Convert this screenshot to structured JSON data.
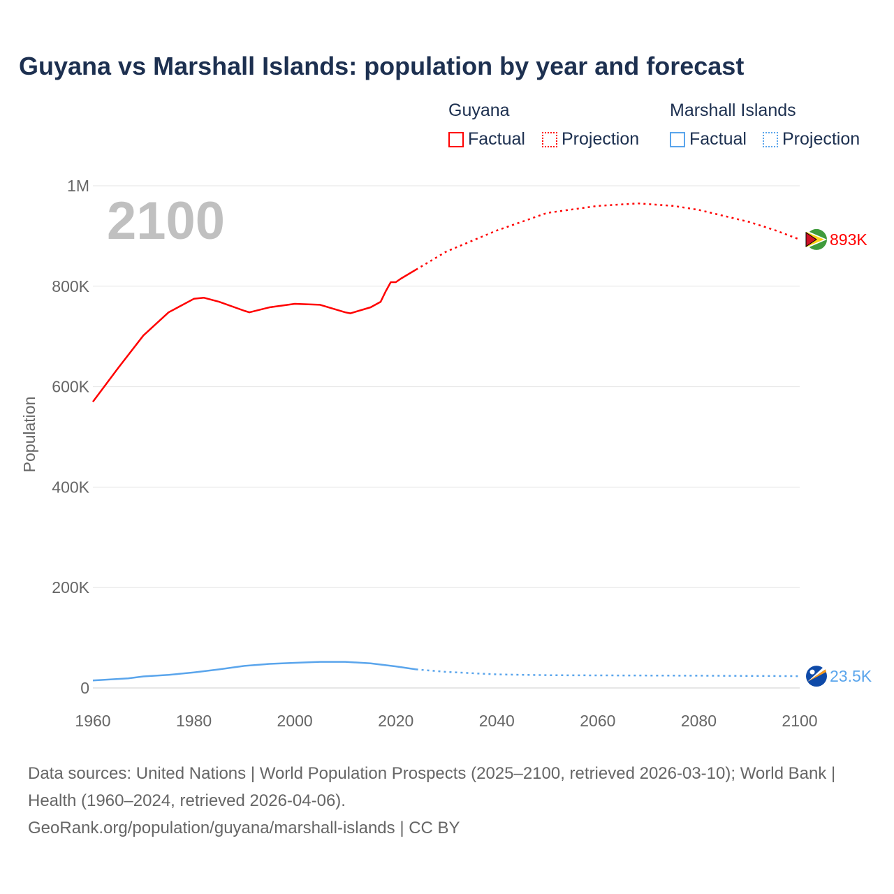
{
  "title": "Guyana vs Marshall Islands: population by year and forecast",
  "legend": {
    "groups": [
      {
        "name": "Guyana",
        "color": "#ff0000",
        "items": [
          "Factual",
          "Projection"
        ]
      },
      {
        "name": "Marshall Islands",
        "color": "#5aa5ec",
        "items": [
          "Factual",
          "Projection"
        ]
      }
    ]
  },
  "footer": {
    "line1": "Data sources: United Nations | World Population Prospects (2025–2100, retrieved 2026-03-10); World Bank | Health (1960–2024, retrieved 2026-04-06).",
    "line2": "GeoRank.org/population/guyana/marshall-islands | CC BY"
  },
  "chart_data": {
    "type": "line",
    "title": "Guyana vs Marshall Islands: population by year and forecast",
    "year_label": "2100",
    "xlabel": "",
    "ylabel": "Population",
    "xlim": [
      1960,
      2100
    ],
    "ylim": [
      0,
      1000000
    ],
    "xticks": [
      1960,
      1980,
      2000,
      2020,
      2040,
      2060,
      2080,
      2100
    ],
    "yticks": [
      {
        "v": 0,
        "l": "0"
      },
      {
        "v": 200000,
        "l": "200K"
      },
      {
        "v": 400000,
        "l": "400K"
      },
      {
        "v": 600000,
        "l": "600K"
      },
      {
        "v": 800000,
        "l": "800K"
      },
      {
        "v": 1000000,
        "l": "1M"
      }
    ],
    "grid": true,
    "series": [
      {
        "name": "Guyana",
        "color": "#ff0000",
        "end_label": "893K",
        "factual": [
          [
            1960,
            570000
          ],
          [
            1965,
            637000
          ],
          [
            1970,
            702000
          ],
          [
            1975,
            748000
          ],
          [
            1980,
            775000
          ],
          [
            1982,
            777000
          ],
          [
            1985,
            769000
          ],
          [
            1990,
            751000
          ],
          [
            1991,
            748000
          ],
          [
            1995,
            758000
          ],
          [
            2000,
            765000
          ],
          [
            2005,
            763000
          ],
          [
            2010,
            748000
          ],
          [
            2011,
            746000
          ],
          [
            2015,
            758000
          ],
          [
            2017,
            769000
          ],
          [
            2018,
            790000
          ],
          [
            2019,
            808000
          ],
          [
            2020,
            808000
          ],
          [
            2021,
            815000
          ],
          [
            2024,
            833000
          ]
        ],
        "projection": [
          [
            2024,
            833000
          ],
          [
            2030,
            869000
          ],
          [
            2040,
            911000
          ],
          [
            2050,
            946000
          ],
          [
            2060,
            960000
          ],
          [
            2068,
            965000
          ],
          [
            2075,
            960000
          ],
          [
            2080,
            952000
          ],
          [
            2090,
            928000
          ],
          [
            2095,
            912000
          ],
          [
            2100,
            893000
          ]
        ]
      },
      {
        "name": "Marshall Islands",
        "color": "#5aa5ec",
        "end_label": "23.5K",
        "factual": [
          [
            1960,
            15000
          ],
          [
            1967,
            19000
          ],
          [
            1970,
            23000
          ],
          [
            1975,
            26000
          ],
          [
            1980,
            31000
          ],
          [
            1985,
            37000
          ],
          [
            1990,
            44000
          ],
          [
            1995,
            48000
          ],
          [
            2000,
            50000
          ],
          [
            2005,
            52000
          ],
          [
            2010,
            52000
          ],
          [
            2015,
            49000
          ],
          [
            2020,
            43000
          ],
          [
            2024,
            37000
          ]
        ],
        "projection": [
          [
            2024,
            37000
          ],
          [
            2030,
            32000
          ],
          [
            2040,
            27000
          ],
          [
            2050,
            25500
          ],
          [
            2060,
            25000
          ],
          [
            2080,
            24500
          ],
          [
            2100,
            23500
          ]
        ]
      }
    ]
  }
}
